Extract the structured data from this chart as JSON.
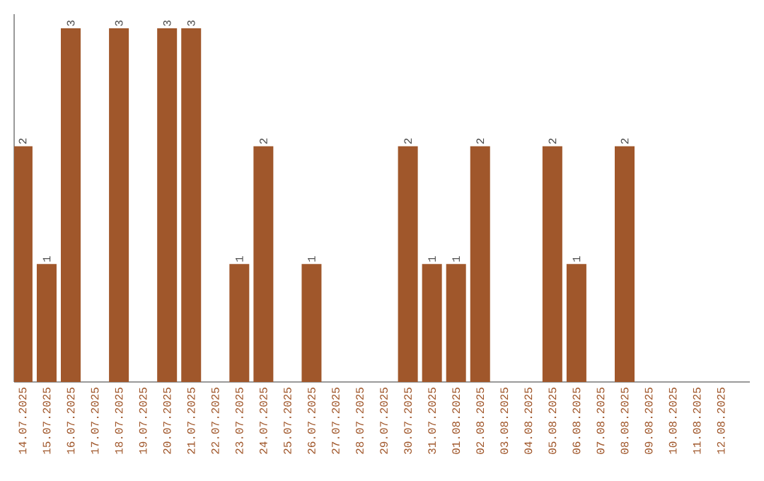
{
  "chart_data": {
    "type": "bar",
    "categories": [
      "14.07.2025",
      "15.07.2025",
      "16.07.2025",
      "17.07.2025",
      "18.07.2025",
      "19.07.2025",
      "20.07.2025",
      "21.07.2025",
      "22.07.2025",
      "23.07.2025",
      "24.07.2025",
      "25.07.2025",
      "26.07.2025",
      "27.07.2025",
      "28.07.2025",
      "29.07.2025",
      "30.07.2025",
      "31.07.2025",
      "01.08.2025",
      "02.08.2025",
      "03.08.2025",
      "04.08.2025",
      "05.08.2025",
      "06.08.2025",
      "07.08.2025",
      "08.08.2025",
      "09.08.2025",
      "10.08.2025",
      "11.08.2025",
      "12.08.2025"
    ],
    "values": [
      2,
      1,
      3,
      null,
      3,
      null,
      3,
      3,
      null,
      1,
      2,
      null,
      1,
      null,
      null,
      null,
      2,
      1,
      1,
      2,
      null,
      null,
      2,
      1,
      null,
      2,
      null,
      null,
      null,
      null
    ],
    "color": "#a0572b",
    "ylim": [
      0,
      3.12
    ],
    "tick_labels": "x",
    "data_labels": true,
    "grid": false
  }
}
